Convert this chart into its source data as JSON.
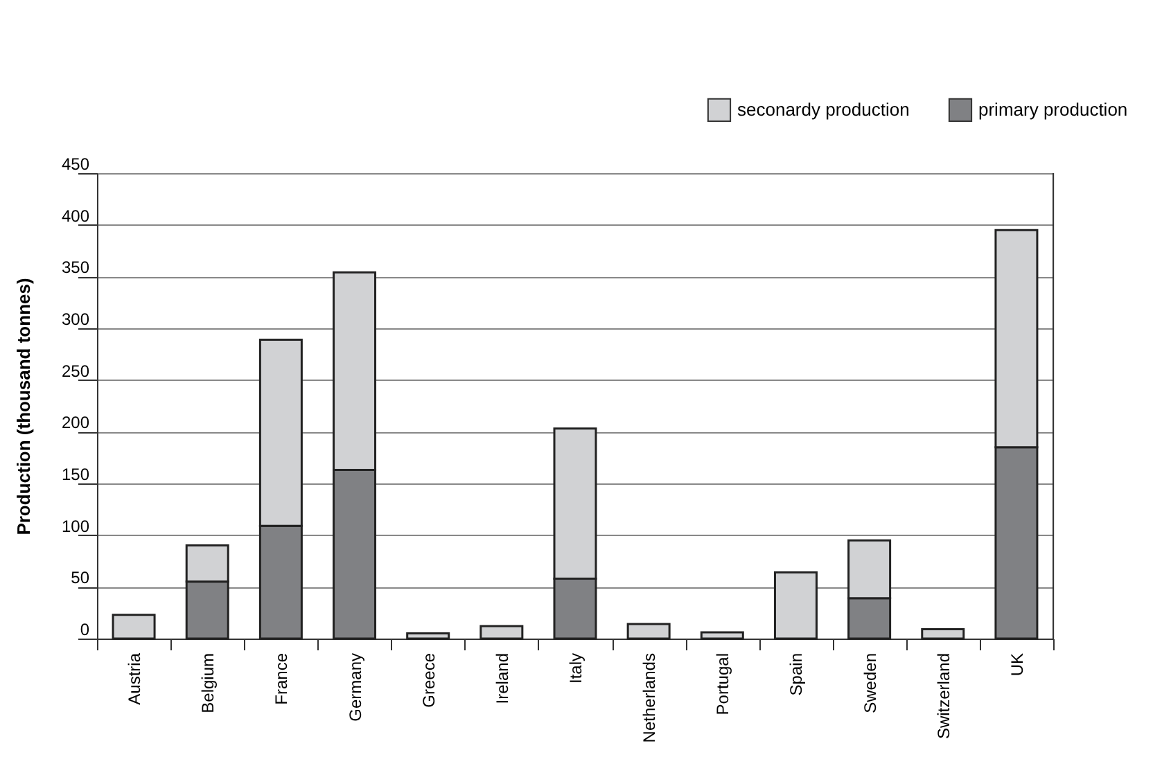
{
  "chart_data": {
    "type": "bar",
    "stacked": true,
    "ylabel": "Production (thousand tonnes)",
    "categories": [
      "Austria",
      "Belgium",
      "France",
      "Germany",
      "Greece",
      "Ireland",
      "Italy",
      "Netherlands",
      "Portugal",
      "Spain",
      "Sweden",
      "Switzerland",
      "UK"
    ],
    "series": [
      {
        "name": "primary production",
        "color": "#808184",
        "values": [
          0,
          55,
          109,
          163,
          0,
          0,
          58,
          0,
          0,
          0,
          39,
          0,
          185
        ]
      },
      {
        "name": "seconardy production",
        "color": "#d1d2d4",
        "values": [
          23,
          35,
          180,
          191,
          5,
          12,
          145,
          14,
          6,
          64,
          56,
          9,
          210
        ]
      }
    ],
    "ylim": [
      0,
      450
    ],
    "yticks": [
      0,
      50,
      100,
      150,
      200,
      250,
      300,
      350,
      400,
      450
    ],
    "grid": "y",
    "legend": "top right"
  }
}
